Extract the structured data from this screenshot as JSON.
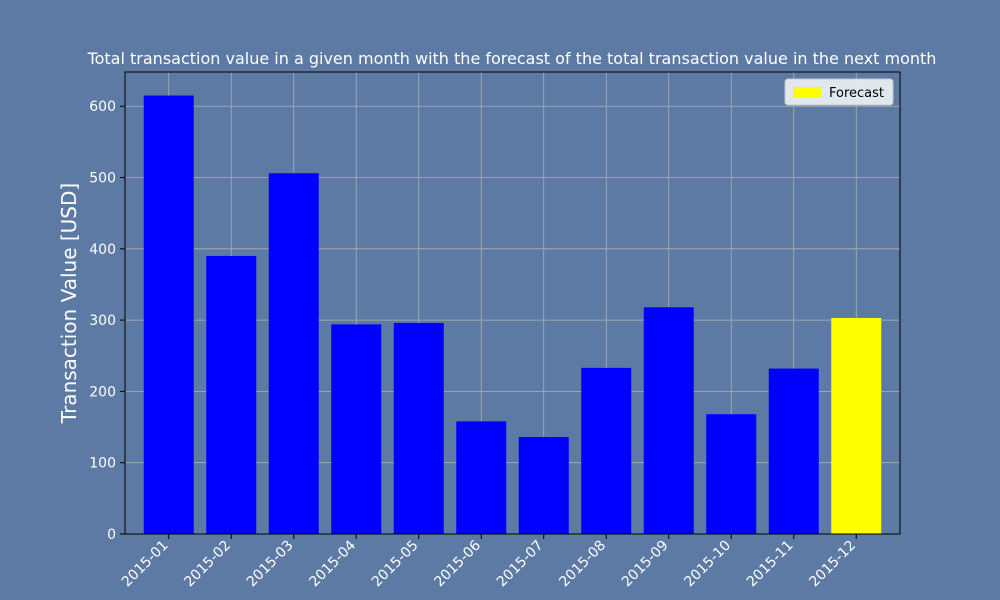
{
  "chart_data": {
    "type": "bar",
    "title": "Total transaction value in a given month with the forecast of the total transaction value in the next month",
    "xlabel": "",
    "ylabel": "Transaction Value [USD]",
    "categories": [
      "2015-01",
      "2015-02",
      "2015-03",
      "2015-04",
      "2015-05",
      "2015-06",
      "2015-07",
      "2015-08",
      "2015-09",
      "2015-10",
      "2015-11",
      "2015-12"
    ],
    "values": [
      615,
      390,
      506,
      294,
      296,
      158,
      136,
      233,
      318,
      168,
      232,
      303
    ],
    "bar_colors": [
      "#0000ff",
      "#0000ff",
      "#0000ff",
      "#0000ff",
      "#0000ff",
      "#0000ff",
      "#0000ff",
      "#0000ff",
      "#0000ff",
      "#0000ff",
      "#0000ff",
      "#ffff00"
    ],
    "ylim": [
      0,
      648
    ],
    "yticks": [
      0,
      100,
      200,
      300,
      400,
      500,
      600
    ],
    "grid": true,
    "legend": {
      "placement": "top-right",
      "entries": [
        {
          "label": "Forecast",
          "color": "#ffff00"
        }
      ]
    },
    "colors": {
      "background": "#5c7aa4",
      "plot_background": "#5c7aa4",
      "grid": "#b0b0b0",
      "text": "#ffffff"
    }
  }
}
